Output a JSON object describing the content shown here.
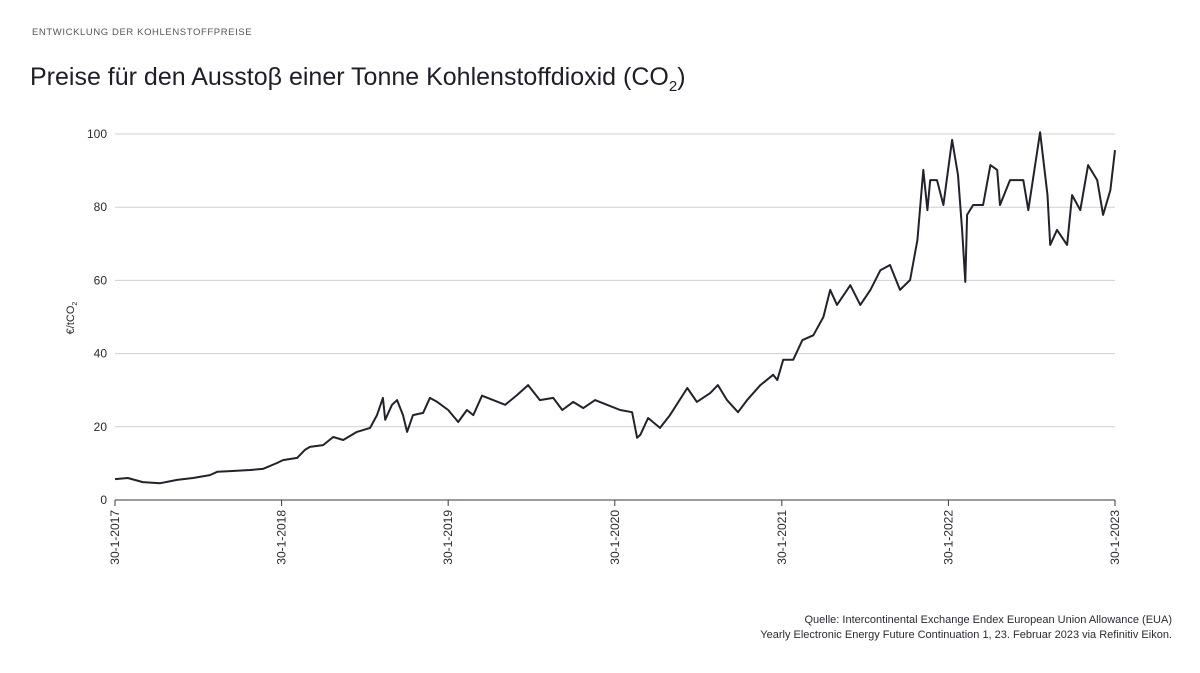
{
  "header": {
    "kicker": "ENTWICKLUNG DER KOHLENSTOFFPREISE",
    "title": "Preise für den Ausstoβ einer Tonne Kohlenstoffdioxid (CO",
    "title_sub": "2",
    "title_end": ")"
  },
  "source": {
    "line1": "Quelle: Intercontinental Exchange Endex European Union Allowance (EUA)",
    "line2": "Yearly Electronic Energy Future Continuation 1, 23. Februar 2023 via Refinitiv Eikon."
  },
  "chart_data": {
    "type": "line",
    "title": "Preise für den Ausstoβ einer Tonne Kohlenstoffdioxid (CO2)",
    "xlabel": "",
    "ylabel": "€/tCO2",
    "ylabel_main": "€/tCO",
    "ylabel_sub": "2",
    "ylim": [
      0,
      100
    ],
    "xlim": [
      "2017-01-30",
      "2023-01-30"
    ],
    "yticks": [
      "0",
      "20",
      "40",
      "60",
      "80",
      "100"
    ],
    "xticks": [
      "30-1-2017",
      "30-1-2018",
      "30-1-2019",
      "30-1-2020",
      "30-1-2021",
      "30-1-2022",
      "30-1-2023"
    ],
    "xtick_dates": [
      "2017-01-30",
      "2018-01-30",
      "2019-01-30",
      "2020-01-30",
      "2021-01-30",
      "2022-01-30",
      "2023-01-30"
    ],
    "grid": "horizontal",
    "line_color": "#22222c",
    "grid_color": "#cfcfd6",
    "series": [
      {
        "points": [
          [
            "2017-01-30",
            5.7
          ],
          [
            "2017-02-27",
            6.0
          ],
          [
            "2017-04-01",
            4.9
          ],
          [
            "2017-05-09",
            4.6
          ],
          [
            "2017-06-15",
            5.5
          ],
          [
            "2017-07-20",
            6.0
          ],
          [
            "2017-08-26",
            6.8
          ],
          [
            "2017-09-11",
            7.7
          ],
          [
            "2017-10-09",
            7.9
          ],
          [
            "2017-11-22",
            8.2
          ],
          [
            "2017-12-20",
            8.5
          ],
          [
            "2018-01-20",
            10.1
          ],
          [
            "2018-02-02",
            10.9
          ],
          [
            "2018-03-05",
            11.5
          ],
          [
            "2018-03-22",
            13.7
          ],
          [
            "2018-04-02",
            14.5
          ],
          [
            "2018-05-01",
            15.0
          ],
          [
            "2018-05-23",
            17.2
          ],
          [
            "2018-06-14",
            16.4
          ],
          [
            "2018-07-14",
            18.6
          ],
          [
            "2018-08-12",
            19.7
          ],
          [
            "2018-08-27",
            23.2
          ],
          [
            "2018-09-09",
            27.9
          ],
          [
            "2018-09-14",
            21.9
          ],
          [
            "2018-09-29",
            26.0
          ],
          [
            "2018-10-10",
            27.3
          ],
          [
            "2018-10-23",
            23.2
          ],
          [
            "2018-11-01",
            18.6
          ],
          [
            "2018-11-14",
            23.2
          ],
          [
            "2018-12-06",
            23.8
          ],
          [
            "2018-12-21",
            27.9
          ],
          [
            "2019-01-06",
            26.8
          ],
          [
            "2019-01-30",
            24.6
          ],
          [
            "2019-02-21",
            21.3
          ],
          [
            "2019-03-12",
            24.6
          ],
          [
            "2019-03-26",
            23.2
          ],
          [
            "2019-04-14",
            28.5
          ],
          [
            "2019-06-04",
            26.0
          ],
          [
            "2019-06-30",
            28.7
          ],
          [
            "2019-07-24",
            31.4
          ],
          [
            "2019-08-19",
            27.3
          ],
          [
            "2019-09-17",
            27.9
          ],
          [
            "2019-10-07",
            24.6
          ],
          [
            "2019-10-31",
            26.8
          ],
          [
            "2019-11-22",
            25.1
          ],
          [
            "2019-12-18",
            27.3
          ],
          [
            "2020-01-13",
            26.0
          ],
          [
            "2020-02-11",
            24.6
          ],
          [
            "2020-03-08",
            24.0
          ],
          [
            "2020-03-19",
            17.0
          ],
          [
            "2020-03-26",
            17.8
          ],
          [
            "2020-04-12",
            22.4
          ],
          [
            "2020-05-08",
            19.7
          ],
          [
            "2020-05-30",
            23.2
          ],
          [
            "2020-07-07",
            30.6
          ],
          [
            "2020-07-28",
            26.8
          ],
          [
            "2020-08-26",
            29.2
          ],
          [
            "2020-09-12",
            31.4
          ],
          [
            "2020-10-02",
            27.3
          ],
          [
            "2020-10-26",
            24.0
          ],
          [
            "2020-11-15",
            27.3
          ],
          [
            "2020-12-14",
            31.4
          ],
          [
            "2021-01-11",
            34.2
          ],
          [
            "2021-01-20",
            32.8
          ],
          [
            "2021-02-02",
            38.3
          ],
          [
            "2021-02-24",
            38.3
          ],
          [
            "2021-03-16",
            43.7
          ],
          [
            "2021-04-09",
            45.0
          ],
          [
            "2021-05-01",
            50.0
          ],
          [
            "2021-05-16",
            57.4
          ],
          [
            "2021-05-31",
            53.3
          ],
          [
            "2021-06-29",
            58.7
          ],
          [
            "2021-07-21",
            53.3
          ],
          [
            "2021-08-12",
            57.4
          ],
          [
            "2021-09-03",
            62.8
          ],
          [
            "2021-09-24",
            64.2
          ],
          [
            "2021-10-16",
            57.4
          ],
          [
            "2021-11-07",
            60.1
          ],
          [
            "2021-11-23",
            71.0
          ],
          [
            "2021-12-06",
            90.2
          ],
          [
            "2021-12-15",
            79.2
          ],
          [
            "2021-12-21",
            87.4
          ],
          [
            "2022-01-05",
            87.4
          ],
          [
            "2022-01-19",
            80.6
          ],
          [
            "2022-02-07",
            98.4
          ],
          [
            "2022-02-20",
            88.8
          ],
          [
            "2022-03-01",
            73.8
          ],
          [
            "2022-03-08",
            59.6
          ],
          [
            "2022-03-12",
            77.9
          ],
          [
            "2022-03-25",
            80.6
          ],
          [
            "2022-04-16",
            80.6
          ],
          [
            "2022-05-02",
            91.5
          ],
          [
            "2022-05-17",
            90.2
          ],
          [
            "2022-05-23",
            80.6
          ],
          [
            "2022-06-14",
            87.4
          ],
          [
            "2022-07-13",
            87.4
          ],
          [
            "2022-07-24",
            79.2
          ],
          [
            "2022-08-19",
            100.5
          ],
          [
            "2022-09-04",
            83.3
          ],
          [
            "2022-09-10",
            69.7
          ],
          [
            "2022-09-25",
            73.8
          ],
          [
            "2022-10-17",
            69.7
          ],
          [
            "2022-10-28",
            83.3
          ],
          [
            "2022-11-15",
            79.2
          ],
          [
            "2022-12-02",
            91.5
          ],
          [
            "2022-12-22",
            87.4
          ],
          [
            "2023-01-04",
            77.9
          ],
          [
            "2023-01-20",
            84.7
          ],
          [
            "2023-01-30",
            95.6
          ]
        ]
      }
    ]
  }
}
